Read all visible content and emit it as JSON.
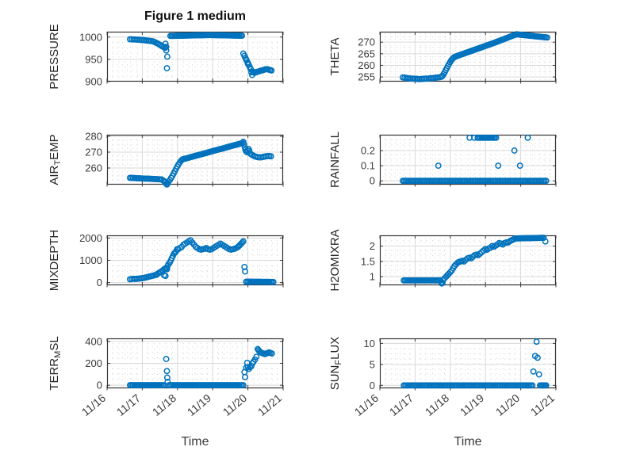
{
  "title": "Figure 1 medium",
  "xlabel": "Time",
  "x_tick_labels": [
    "11/16",
    "11/17",
    "11/18",
    "11/19",
    "11/20",
    "11/21"
  ],
  "accent_color": "#0072BD",
  "chart_data": [
    {
      "key": "pressure",
      "type": "scatter",
      "ylabel_parts": {
        "pre": "PRESSURE",
        "sub": "",
        "post": ""
      },
      "yticks": [
        900,
        950,
        1000
      ],
      "ylim": [
        900,
        1012
      ],
      "xlim": [
        0,
        5
      ],
      "segments": [
        {
          "type": "vals",
          "x0": 0.65,
          "dx": 0.05,
          "y": [
            995,
            995,
            994.5,
            994.5,
            994,
            994,
            993.5,
            993.5,
            993,
            992.5,
            992,
            991.5,
            991,
            990.5
          ]
        },
        {
          "type": "vals",
          "x0": 1.33,
          "dx": 0.04,
          "y": [
            989.5,
            988,
            986.5,
            985,
            983,
            981,
            979,
            977.5,
            976
          ]
        },
        {
          "type": "pts",
          "pts": [
            [
              1.66,
              985
            ],
            [
              1.68,
              978
            ],
            [
              1.68,
              970
            ],
            [
              1.71,
              956
            ],
            [
              1.7,
              930
            ]
          ]
        },
        {
          "type": "lin",
          "x0": 1.8,
          "x1": 2.9,
          "n": 30,
          "y0": 1002.5,
          "y1": 1004.5
        },
        {
          "type": "lin",
          "x0": 2.93,
          "x1": 3.83,
          "n": 25,
          "y0": 1004.5,
          "y1": 1003
        },
        {
          "type": "vals",
          "x0": 3.87,
          "dx": 0.03,
          "y": [
            963,
            958,
            953,
            948,
            943,
            938,
            933,
            928
          ]
        },
        {
          "type": "pts",
          "pts": [
            [
              3.95,
              950
            ],
            [
              4.0,
              940
            ],
            [
              4.1,
              921
            ],
            [
              4.12,
              915
            ]
          ]
        },
        {
          "type": "vals",
          "x0": 4.15,
          "dx": 0.04,
          "y": [
            922,
            920,
            921,
            922,
            923,
            924,
            925,
            926,
            927,
            928,
            928,
            927,
            926,
            925
          ]
        }
      ]
    },
    {
      "key": "theta",
      "type": "scatter",
      "ylabel_parts": {
        "pre": "THETA",
        "sub": "",
        "post": ""
      },
      "yticks": [
        255,
        260,
        265,
        270
      ],
      "ylim": [
        253,
        274.5
      ],
      "xlim": [
        0,
        5
      ],
      "segments": [
        {
          "type": "vals",
          "x0": 0.65,
          "dx": 0.05,
          "y": [
            254.8,
            254.7,
            254.6,
            254.5,
            254.4,
            254.3,
            254.3,
            254.2,
            254.2,
            254.1,
            254.1,
            254.2,
            254.2,
            254.3,
            254.3,
            254.4,
            254.5,
            254.5,
            254.6,
            254.7,
            254.8,
            254.9,
            255.1
          ]
        },
        {
          "type": "vals",
          "x0": 1.78,
          "dx": 0.03,
          "y": [
            255.5,
            256.2,
            257,
            257.9,
            258.8,
            259.7,
            260.5,
            261.3,
            262,
            262.6,
            263.1,
            263.5
          ]
        },
        {
          "type": "lin",
          "x0": 2.15,
          "x1": 3.3,
          "n": 30,
          "y0": 263.8,
          "y1": 270
        },
        {
          "type": "lin",
          "x0": 3.33,
          "x1": 3.88,
          "n": 15,
          "y0": 270.2,
          "y1": 273.4
        },
        {
          "type": "lin",
          "x0": 3.92,
          "x1": 4.75,
          "n": 22,
          "y0": 273.3,
          "y1": 272
        }
      ]
    },
    {
      "key": "airtemp",
      "type": "scatter",
      "ylabel_parts": {
        "pre": "AIR",
        "sub": "T",
        "post": "EMP"
      },
      "yticks": [
        260,
        270,
        280
      ],
      "ylim": [
        249.5,
        281
      ],
      "xlim": [
        0,
        5
      ],
      "segments": [
        {
          "type": "lin",
          "x0": 0.65,
          "x1": 1.55,
          "n": 22,
          "y0": 253.8,
          "y1": 252.8
        },
        {
          "type": "pts",
          "pts": [
            [
              1.6,
              252
            ],
            [
              1.63,
              251.5
            ],
            [
              1.66,
              251
            ],
            [
              1.68,
              250
            ],
            [
              1.7,
              249.6
            ],
            [
              1.72,
              250.5
            ]
          ]
        },
        {
          "type": "vals",
          "x0": 1.75,
          "dx": 0.035,
          "y": [
            251.5,
            252.5,
            253.8,
            255,
            256.5,
            258,
            259.5,
            261,
            262.3,
            263.5,
            264.5,
            265.3
          ]
        },
        {
          "type": "lin",
          "x0": 2.17,
          "x1": 3.85,
          "n": 45,
          "y0": 265.6,
          "y1": 275.8
        },
        {
          "type": "pts",
          "pts": [
            [
              3.87,
              276.5
            ],
            [
              3.89,
              275
            ],
            [
              3.91,
              273
            ],
            [
              3.93,
              271.5
            ],
            [
              3.95,
              270.5
            ],
            [
              3.97,
              270
            ],
            [
              3.99,
              271
            ],
            [
              4.02,
              272
            ],
            [
              4.04,
              270.8
            ]
          ]
        },
        {
          "type": "vals",
          "x0": 4.07,
          "dx": 0.045,
          "y": [
            269,
            268.3,
            267.8,
            267.3,
            267,
            266.8,
            266.7,
            266.8,
            267,
            267.2,
            267.4,
            267.5,
            267.5,
            267.4
          ]
        }
      ]
    },
    {
      "key": "rainfall",
      "type": "scatter",
      "ylabel_parts": {
        "pre": "RAINFALL",
        "sub": "",
        "post": ""
      },
      "yticks": [
        0,
        0.1,
        0.2
      ],
      "ylim": [
        -0.025,
        0.305
      ],
      "xlim": [
        0,
        5
      ],
      "segments": [
        {
          "type": "lin",
          "x0": 0.65,
          "x1": 4.72,
          "n": 95,
          "y0": 0,
          "y1": 0
        },
        {
          "type": "pts",
          "pts": [
            [
              1.66,
              0.1
            ],
            [
              2.55,
              0.285
            ],
            [
              2.68,
              0.285
            ],
            [
              3.36,
              0.1
            ],
            [
              3.82,
              0.2
            ],
            [
              3.98,
              0.1
            ],
            [
              4.2,
              0.285
            ]
          ]
        },
        {
          "type": "lin",
          "x0": 2.78,
          "x1": 3.3,
          "n": 14,
          "y0": 0.285,
          "y1": 0.285
        }
      ]
    },
    {
      "key": "mixdepth",
      "type": "scatter",
      "ylabel_parts": {
        "pre": "MIXDEPTH",
        "sub": "",
        "post": ""
      },
      "yticks": [
        0,
        1000,
        2000
      ],
      "ylim": [
        -120,
        2120
      ],
      "xlim": [
        0,
        5
      ],
      "segments": [
        {
          "type": "vals",
          "x0": 0.65,
          "dx": 0.05,
          "y": [
            150,
            160,
            170,
            160,
            170,
            180,
            190,
            200,
            210,
            230,
            250,
            270,
            290,
            310,
            330,
            350
          ]
        },
        {
          "type": "vals",
          "x0": 1.42,
          "dx": 0.04,
          "y": [
            380,
            420,
            460,
            500,
            550,
            600,
            640,
            600
          ]
        },
        {
          "type": "pts",
          "pts": [
            [
              1.62,
              330
            ],
            [
              1.66,
              300
            ],
            [
              1.7,
              650
            ],
            [
              1.72,
              750
            ],
            [
              1.74,
              820
            ]
          ]
        },
        {
          "type": "vals",
          "x0": 1.78,
          "dx": 0.03,
          "y": [
            900,
            1000,
            1100,
            1200,
            1300,
            1350,
            1400,
            1500
          ]
        },
        {
          "type": "vals",
          "x0": 2.02,
          "dx": 0.05,
          "y": [
            1500,
            1550,
            1600,
            1700,
            1750,
            1800,
            1850,
            1900,
            1800,
            1700
          ]
        },
        {
          "type": "vals",
          "x0": 2.52,
          "dx": 0.05,
          "y": [
            1600,
            1550,
            1500,
            1480,
            1500,
            1520,
            1550,
            1500,
            1480,
            1500,
            1550,
            1600,
            1650,
            1700,
            1750,
            1700,
            1650,
            1600,
            1550,
            1500,
            1480,
            1500,
            1520,
            1550
          ]
        },
        {
          "type": "vals",
          "x0": 3.72,
          "dx": 0.03,
          "y": [
            1600,
            1650,
            1700,
            1750,
            1800,
            1850
          ]
        },
        {
          "type": "pts",
          "pts": [
            [
              3.9,
              700
            ],
            [
              3.92,
              500
            ]
          ]
        },
        {
          "type": "lin",
          "x0": 3.95,
          "x1": 4.72,
          "n": 20,
          "y0": 40,
          "y1": 30
        }
      ]
    },
    {
      "key": "h2omixra",
      "type": "scatter",
      "ylabel_parts": {
        "pre": "H2OMIXRA",
        "sub": "",
        "post": ""
      },
      "yticks": [
        1,
        1.5,
        2
      ],
      "ylim": [
        0.72,
        2.35
      ],
      "xlim": [
        0,
        5
      ],
      "segments": [
        {
          "type": "lin",
          "x0": 0.68,
          "x1": 1.72,
          "n": 26,
          "y0": 0.88,
          "y1": 0.88
        },
        {
          "type": "pts",
          "pts": [
            [
              1.74,
              0.82
            ],
            [
              1.76,
              0.78
            ],
            [
              1.78,
              0.8
            ]
          ]
        },
        {
          "type": "vals",
          "x0": 1.8,
          "dx": 0.04,
          "y": [
            0.9,
            0.95,
            1,
            1.05,
            1.1,
            1.15,
            1.2,
            1.28,
            1.35,
            1.4,
            1.45
          ]
        },
        {
          "type": "vals",
          "x0": 2.24,
          "dx": 0.05,
          "y": [
            1.48,
            1.5,
            1.52,
            1.5,
            1.55,
            1.6,
            1.62,
            1.6,
            1.65,
            1.7,
            1.72,
            1.7,
            1.75,
            1.8
          ]
        },
        {
          "type": "vals",
          "x0": 2.94,
          "dx": 0.05,
          "y": [
            1.85,
            1.9,
            1.88,
            1.92,
            1.95,
            2,
            1.98,
            2.02,
            2.05,
            2.1,
            2.08,
            2.05,
            2.1,
            2.12
          ]
        },
        {
          "type": "vals",
          "x0": 3.64,
          "dx": 0.04,
          "y": [
            2.12,
            2.15,
            2.18,
            2.2,
            2.22,
            2.25
          ]
        },
        {
          "type": "lin",
          "x0": 3.88,
          "x1": 4.65,
          "n": 22,
          "y0": 2.25,
          "y1": 2.27
        },
        {
          "type": "pts",
          "pts": [
            [
              4.7,
              2.15
            ]
          ]
        }
      ]
    },
    {
      "key": "terrmsl",
      "type": "scatter",
      "ylabel_parts": {
        "pre": "TERR",
        "sub": "M",
        "post": "SL"
      },
      "yticks": [
        0,
        200,
        400
      ],
      "ylim": [
        -28,
        428
      ],
      "xlim": [
        0,
        5
      ],
      "segments": [
        {
          "type": "lin",
          "x0": 0.65,
          "x1": 1.62,
          "n": 25,
          "y0": 0,
          "y1": 0
        },
        {
          "type": "lin",
          "x0": 1.76,
          "x1": 3.87,
          "n": 52,
          "y0": 0,
          "y1": 0
        },
        {
          "type": "pts",
          "pts": [
            [
              1.68,
              240
            ],
            [
              1.7,
              130
            ],
            [
              1.71,
              70
            ],
            [
              1.72,
              30
            ]
          ]
        },
        {
          "type": "pts",
          "pts": [
            [
              3.9,
              120
            ],
            [
              3.92,
              75
            ],
            [
              3.95,
              160
            ],
            [
              3.98,
              205
            ],
            [
              4.0,
              165
            ],
            [
              4.03,
              150
            ],
            [
              4.06,
              165
            ],
            [
              4.1,
              175
            ],
            [
              4.13,
              200
            ],
            [
              4.16,
              215
            ],
            [
              4.2,
              235
            ],
            [
              4.24,
              260
            ],
            [
              4.28,
              330
            ],
            [
              4.3,
              320
            ],
            [
              4.33,
              310
            ],
            [
              4.36,
              300
            ],
            [
              4.4,
              295
            ],
            [
              4.44,
              290
            ],
            [
              4.48,
              285
            ],
            [
              4.52,
              290
            ],
            [
              4.56,
              295
            ],
            [
              4.6,
              300
            ],
            [
              4.64,
              295
            ],
            [
              4.68,
              290
            ]
          ]
        }
      ]
    },
    {
      "key": "sunflux",
      "type": "scatter",
      "ylabel_parts": {
        "pre": "SUN",
        "sub": "F",
        "post": "LUX"
      },
      "yticks": [
        0,
        5,
        10
      ],
      "ylim": [
        -0.7,
        11.2
      ],
      "xlim": [
        0,
        5
      ],
      "segments": [
        {
          "type": "lin",
          "x0": 0.68,
          "x1": 4.33,
          "n": 85,
          "y0": 0,
          "y1": 0
        },
        {
          "type": "lin",
          "x0": 4.55,
          "x1": 4.72,
          "n": 6,
          "y0": 0,
          "y1": 0
        },
        {
          "type": "pts",
          "pts": [
            [
              4.36,
              3.3
            ],
            [
              4.41,
              7
            ],
            [
              4.45,
              10.4
            ],
            [
              4.48,
              6.6
            ],
            [
              4.52,
              2.6
            ]
          ]
        }
      ]
    }
  ]
}
